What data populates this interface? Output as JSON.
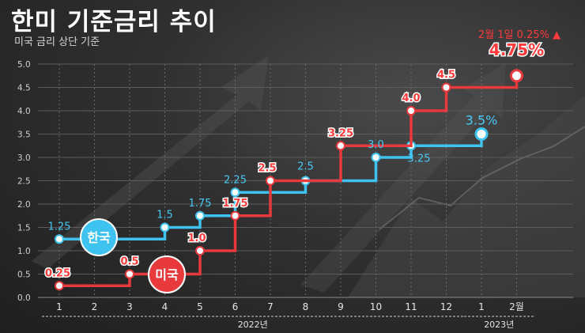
{
  "title": "한미 기준금리 추이",
  "subtitle": "미국 금리 상단 기준",
  "chart_data": {
    "type": "line",
    "step": true,
    "ylim": [
      0,
      5
    ],
    "yticks": [
      "0.0",
      "0.5",
      "1.0",
      "1.5",
      "2.0",
      "2.5",
      "3.0",
      "3.5",
      "4.0",
      "4.5",
      "5.0"
    ],
    "categories": [
      "1",
      "2",
      "3",
      "4",
      "5",
      "6",
      "7",
      "8",
      "9",
      "10",
      "11",
      "12",
      "1",
      "2월"
    ],
    "year_labels": [
      {
        "label": "2022년",
        "from": 0,
        "to": 11
      },
      {
        "label": "2023년",
        "from": 12,
        "to": 13
      }
    ],
    "series": [
      {
        "name": "한국",
        "color": "#3ec3f0",
        "points": [
          {
            "x": 0,
            "y": 1.25,
            "label": "1.25"
          },
          {
            "x": 3,
            "y": 1.5,
            "label": "1.5"
          },
          {
            "x": 4,
            "y": 1.75,
            "label": "1.75"
          },
          {
            "x": 5,
            "y": 2.25,
            "label": "2.25"
          },
          {
            "x": 7,
            "y": 2.5,
            "label": "2.5"
          },
          {
            "x": 9,
            "y": 3.0,
            "label": "3.0"
          },
          {
            "x": 10,
            "y": 3.25,
            "label": "3.25"
          },
          {
            "x": 12,
            "y": 3.5,
            "label": "3.5%"
          }
        ],
        "end_x": 12
      },
      {
        "name": "미국",
        "color": "#e8393c",
        "points": [
          {
            "x": 0,
            "y": 0.25,
            "label": "0.25"
          },
          {
            "x": 2,
            "y": 0.5,
            "label": "0.5"
          },
          {
            "x": 4,
            "y": 1.0,
            "label": "1.0"
          },
          {
            "x": 5,
            "y": 1.75,
            "label": "1.75"
          },
          {
            "x": 6,
            "y": 2.5,
            "label": "2.5"
          },
          {
            "x": 8,
            "y": 3.25,
            "label": "3.25"
          },
          {
            "x": 10,
            "y": 4.0,
            "label": "4.0"
          },
          {
            "x": 11,
            "y": 4.5,
            "label": "4.5"
          },
          {
            "x": 13,
            "y": 4.75,
            "label": "4.75%"
          }
        ],
        "end_x": 13
      }
    ],
    "annotation": "2월 1일 0.25% ▲"
  }
}
